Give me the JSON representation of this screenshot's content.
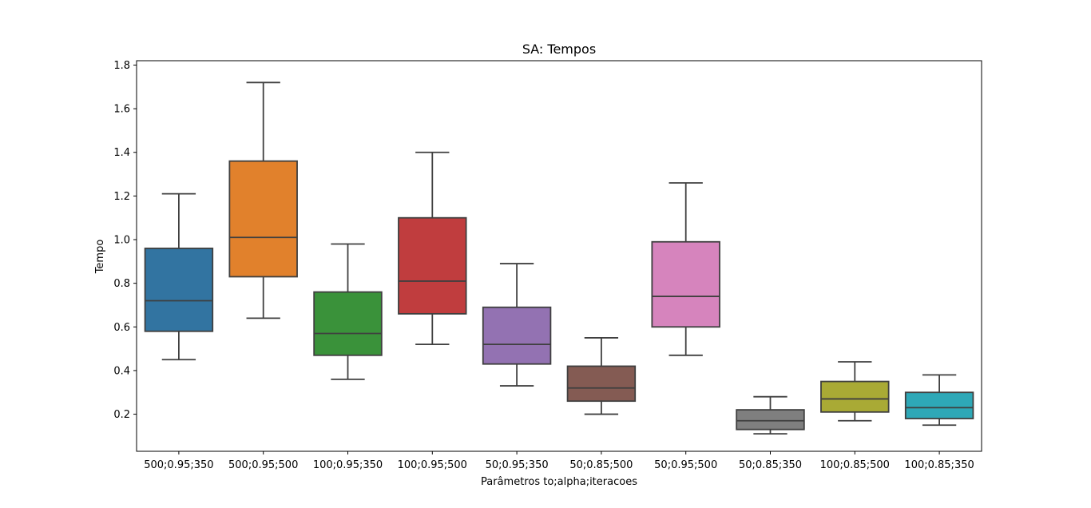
{
  "chart_data": {
    "type": "box",
    "title": "SA: Tempos",
    "xlabel": "Parâmetros to;alpha;iteracoes",
    "ylabel": "Tempo",
    "ylim": [
      0.03,
      1.82
    ],
    "yticks": [
      "0.2",
      "0.4",
      "0.6",
      "0.8",
      "1.0",
      "1.2",
      "1.4",
      "1.6",
      "1.8"
    ],
    "grid": false,
    "categories": [
      "500;0.95;350",
      "500;0.95;500",
      "100;0.95;350",
      "100;0.95;500",
      "50;0.95;350",
      "50;0.85;500",
      "50;0.95;500",
      "50;0.85;350",
      "100;0.85;500",
      "100;0.85;350"
    ],
    "boxes": [
      {
        "whisker_low": 0.45,
        "q1": 0.58,
        "median": 0.72,
        "q3": 0.96,
        "whisker_high": 1.21,
        "color": "#3274a1"
      },
      {
        "whisker_low": 0.64,
        "q1": 0.83,
        "median": 1.01,
        "q3": 1.36,
        "whisker_high": 1.72,
        "color": "#e1812c"
      },
      {
        "whisker_low": 0.36,
        "q1": 0.47,
        "median": 0.57,
        "q3": 0.76,
        "whisker_high": 0.98,
        "color": "#3a923a"
      },
      {
        "whisker_low": 0.52,
        "q1": 0.66,
        "median": 0.81,
        "q3": 1.1,
        "whisker_high": 1.4,
        "color": "#c03d3e"
      },
      {
        "whisker_low": 0.33,
        "q1": 0.43,
        "median": 0.52,
        "q3": 0.69,
        "whisker_high": 0.89,
        "color": "#9372b2"
      },
      {
        "whisker_low": 0.2,
        "q1": 0.26,
        "median": 0.32,
        "q3": 0.42,
        "whisker_high": 0.55,
        "color": "#845b53"
      },
      {
        "whisker_low": 0.47,
        "q1": 0.6,
        "median": 0.74,
        "q3": 0.99,
        "whisker_high": 1.26,
        "color": "#d684bd"
      },
      {
        "whisker_low": 0.11,
        "q1": 0.13,
        "median": 0.17,
        "q3": 0.22,
        "whisker_high": 0.28,
        "color": "#7f7f7f"
      },
      {
        "whisker_low": 0.17,
        "q1": 0.21,
        "median": 0.27,
        "q3": 0.35,
        "whisker_high": 0.44,
        "color": "#a9aa35"
      },
      {
        "whisker_low": 0.15,
        "q1": 0.18,
        "median": 0.23,
        "q3": 0.3,
        "whisker_high": 0.38,
        "color": "#2ea8b7"
      }
    ],
    "line_color": "#3f3f3f"
  }
}
